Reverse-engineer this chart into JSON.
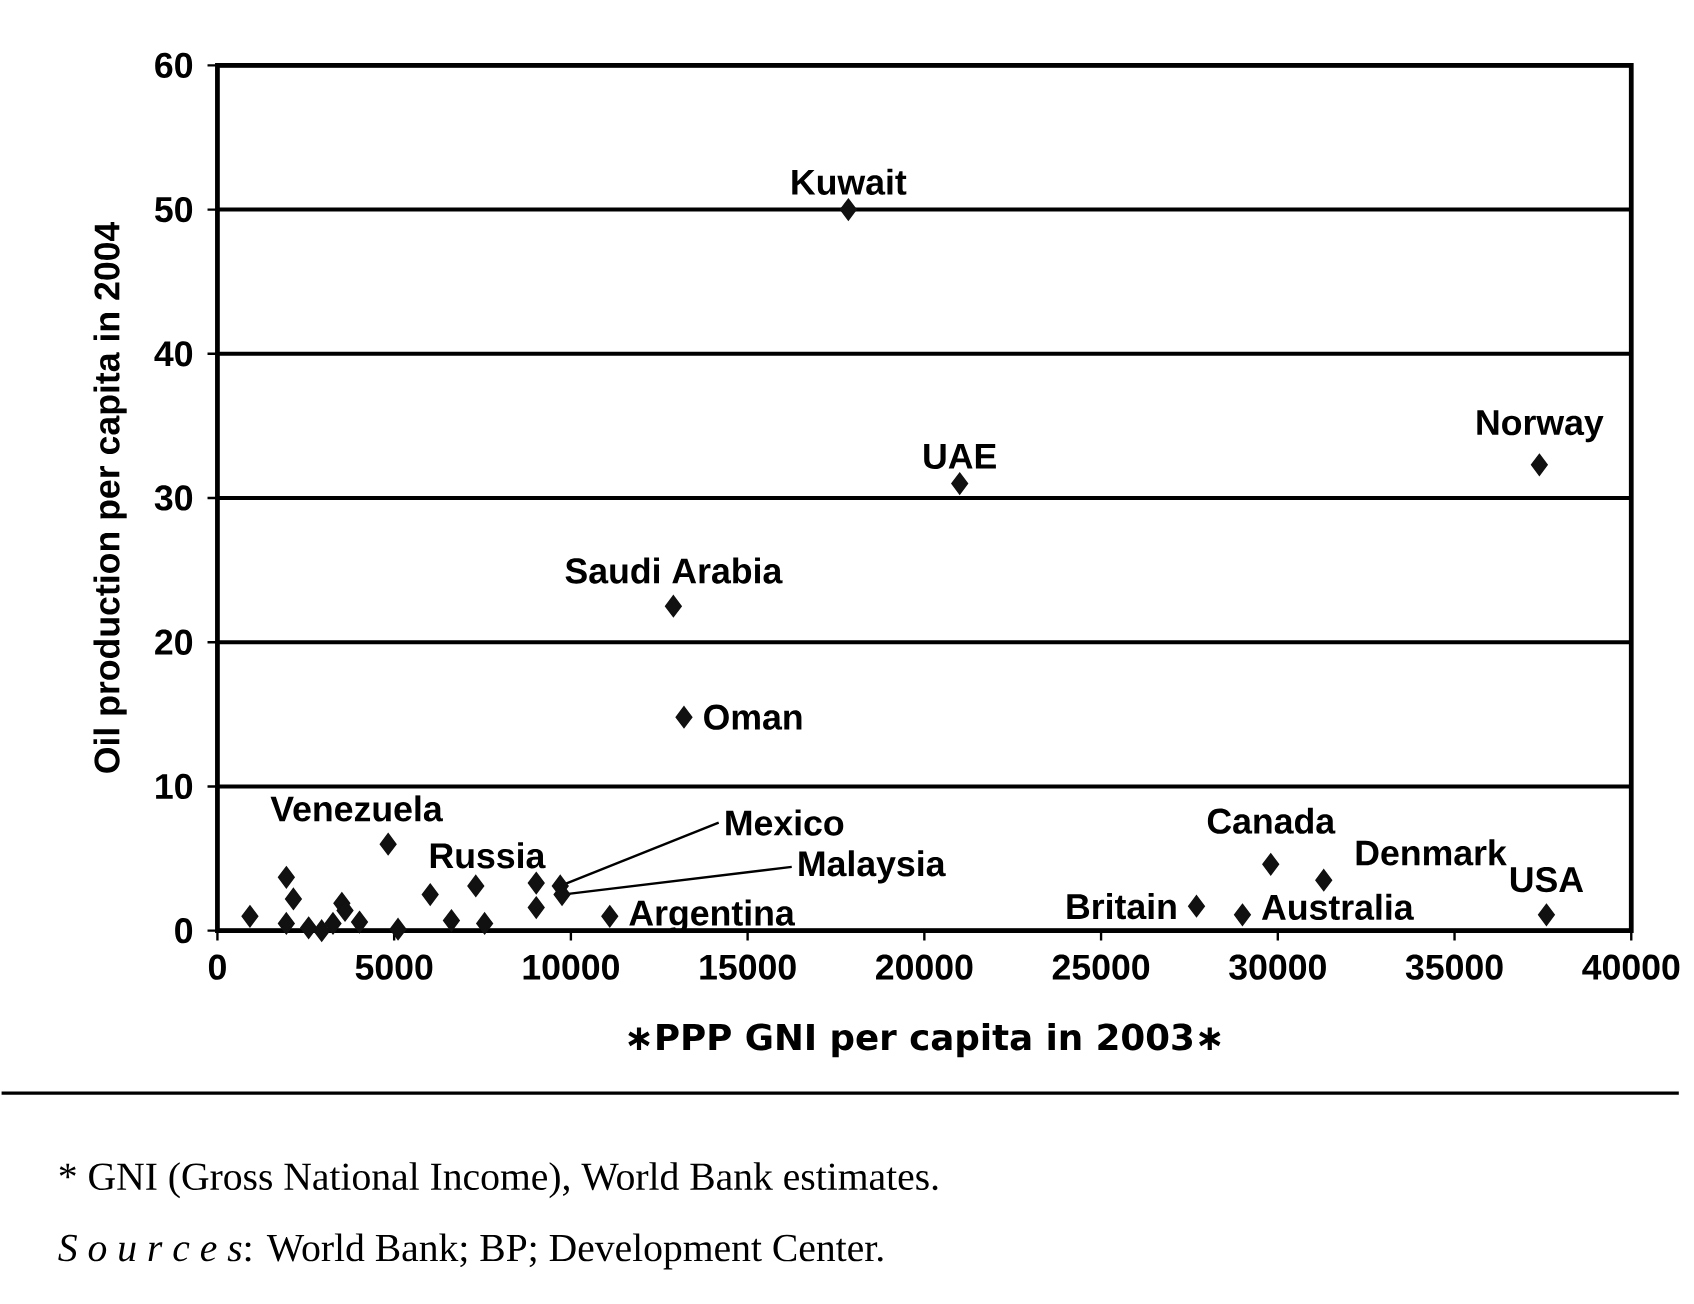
{
  "chart_data": {
    "type": "scatter",
    "xlabel": "∗PPP GNI per capita in 2003∗",
    "ylabel": "Oil production per capita in 2004",
    "xlim": [
      0,
      40000
    ],
    "xticks": [
      0,
      5000,
      10000,
      15000,
      20000,
      25000,
      30000,
      35000,
      40000
    ],
    "ylim": [
      0,
      60
    ],
    "yticks": [
      0,
      10,
      20,
      30,
      40,
      50,
      60
    ],
    "grid": "y",
    "marker": "diamond",
    "series": [
      {
        "color": "#111111",
        "x": [
          920,
          1950,
          2150,
          1950,
          2580,
          2950,
          3270,
          3520,
          3610,
          4020,
          4830,
          5110,
          6020,
          6620,
          7310,
          7560,
          9020,
          9020,
          9700,
          9750,
          11100,
          13200,
          12900,
          17850,
          21000,
          37400,
          29800,
          31300,
          27700,
          29000,
          37600
        ],
        "values": [
          1.0,
          3.7,
          2.2,
          0.5,
          0.2,
          0.0,
          0.5,
          1.9,
          1.4,
          0.6,
          6.0,
          0.1,
          2.5,
          0.7,
          3.1,
          0.5,
          3.3,
          1.6,
          3.1,
          2.5,
          1.0,
          14.8,
          22.5,
          50,
          31.0,
          32.3,
          4.6,
          3.5,
          1.7,
          1.1,
          1.1
        ]
      }
    ],
    "annotations": [
      {
        "text": "Kuwait",
        "x": 17850,
        "y": 50
      },
      {
        "text": "UAE",
        "x": 21000,
        "y": 31.0
      },
      {
        "text": "Norway",
        "x": 37400,
        "y": 32.3
      },
      {
        "text": "Saudi Arabia",
        "x": 12900,
        "y": 22.5
      },
      {
        "text": "Oman",
        "x": 13200,
        "y": 14.8
      },
      {
        "text": "Venezuela",
        "x": 4830,
        "y": 6.0
      },
      {
        "text": "Russia",
        "x": 9020,
        "y": 3.3
      },
      {
        "text": "Mexico",
        "x": 9700,
        "y": 3.1
      },
      {
        "text": "Malaysia",
        "x": 9750,
        "y": 2.5
      },
      {
        "text": "Argentina",
        "x": 11100,
        "y": 1.0
      },
      {
        "text": "Canada",
        "x": 29800,
        "y": 4.6
      },
      {
        "text": "Denmark",
        "x": 31300,
        "y": 3.5
      },
      {
        "text": "Britain",
        "x": 27700,
        "y": 1.7
      },
      {
        "text": "Australia",
        "x": 29000,
        "y": 1.1
      },
      {
        "text": "USA",
        "x": 37600,
        "y": 1.1
      },
      "* GNI (Gross National Income), World Bank estimates.",
      "*S o u r c e s*: World Bank; BP; Development Center."
    ]
  }
}
